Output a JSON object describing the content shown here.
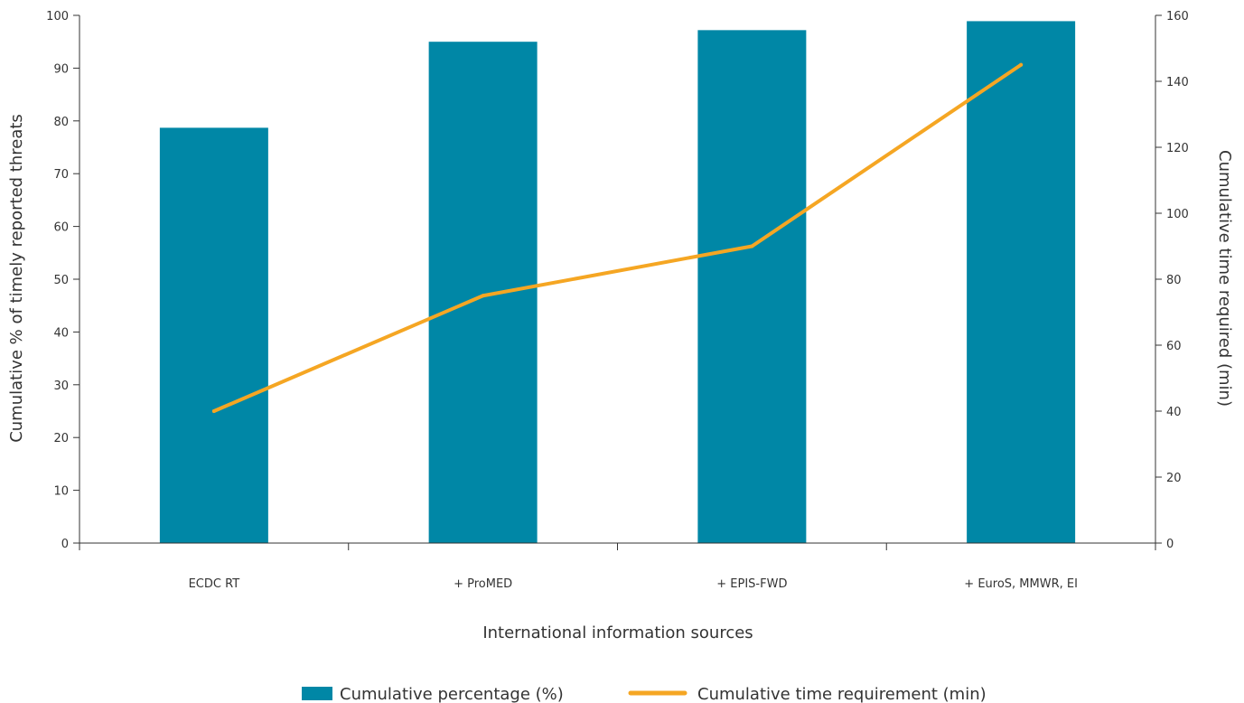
{
  "chart_data": {
    "type": "bar",
    "categories": [
      "ECDC RT",
      "+ ProMED",
      "+ EPIS-FWD",
      "+ EuroS, MMWR, EI"
    ],
    "series": [
      {
        "name": "Cumulative percentage (%)",
        "type": "bar",
        "axis": "left",
        "color": "#0087a6",
        "values": [
          78.7,
          95,
          97.2,
          98.9
        ]
      },
      {
        "name": "Cumulative time requirement (min)",
        "type": "line",
        "axis": "right",
        "color": "#f5a623",
        "values": [
          40,
          75,
          90,
          145
        ]
      }
    ],
    "xlabel": "International information sources",
    "ylabel": "Cumulative % of timely reported threats",
    "y2label": "Cumulative time required (min)",
    "ylim": [
      0,
      100
    ],
    "y2lim": [
      0,
      160
    ],
    "yticks": [
      0,
      10,
      20,
      30,
      40,
      50,
      60,
      70,
      80,
      90,
      100
    ],
    "y2ticks": [
      0,
      20,
      40,
      60,
      80,
      100,
      120,
      140,
      160
    ],
    "grid": false,
    "legend": "bottom-center"
  }
}
